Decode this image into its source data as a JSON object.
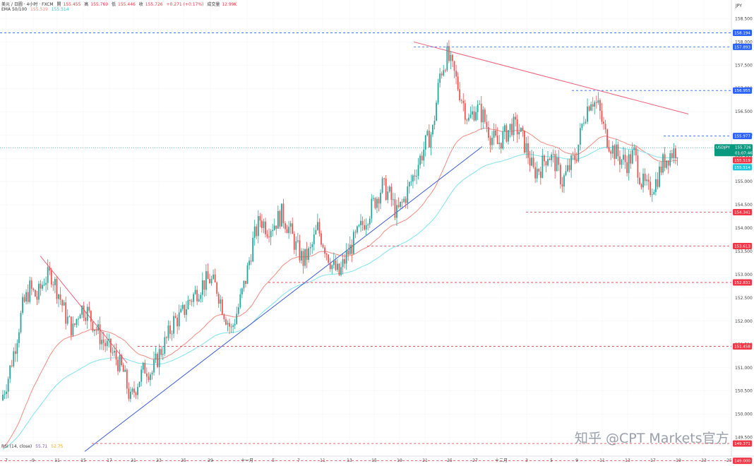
{
  "header": {
    "symbol_line": "美元 / 日圆 · 4小时 · FXCM",
    "open_label": "開",
    "open": "155.455",
    "high_label": "高",
    "high": "155.769",
    "low_label": "低",
    "low": "155.446",
    "close_label": "收",
    "close": "155.726",
    "change": "+0.271 (+0.17%)",
    "volume_label": "成交量",
    "volume": "12.99K",
    "ema_label": "EMA 50/100",
    "ema50": "155.519",
    "ema100": "155.514",
    "rsi_label": "RSI (14, close)",
    "rsi1": "55.71",
    "rsi2": "52.75"
  },
  "currency_label": "JPY",
  "watermark": "知乎 @CPT Markets官方",
  "colors": {
    "up": "#26a69a",
    "down": "#ef5350",
    "ema50": "#f28b82",
    "ema100": "#7fe3ee",
    "resistance": "#f0627a",
    "support_trend": "#3b5bdb",
    "blue_level": "#2962ff",
    "red_level": "#f23645",
    "price_tag": "#089981"
  },
  "chart_data": {
    "type": "candlestick",
    "title": "USDJPY 4H",
    "symbol": "USDJPY",
    "last_price": "155.726",
    "countdown": "01:07:46",
    "ema50_value": "155.519",
    "ema100_value": "155.514",
    "ylim": [
      149.1,
      158.9
    ],
    "y_ticks": [
      "158.500",
      "158.000",
      "157.500",
      "157.000",
      "156.500",
      "156.000",
      "155.500",
      "155.000",
      "154.500",
      "154.000",
      "153.500",
      "153.000",
      "152.500",
      "152.000",
      "151.500",
      "151.000",
      "150.500",
      "150.000",
      "149.500"
    ],
    "x_ticks": [
      "7",
      "9",
      "11",
      "15",
      "17",
      "21",
      "23",
      "25",
      "29",
      "十一月",
      "5",
      "7",
      "11",
      "13",
      "15",
      "19",
      "21",
      "25",
      "27",
      "十二月",
      "3",
      "5",
      "9",
      "11",
      "13",
      "17",
      "19",
      "23",
      "25"
    ],
    "levels_blue": [
      "158.194",
      "157.893",
      "156.955",
      "155.977"
    ],
    "levels_red": [
      "154.341",
      "153.613",
      "152.831",
      "151.458",
      "149.371",
      "149.000"
    ],
    "candle_anchors": [
      150.3,
      150.8,
      151.5,
      152.3,
      152.7,
      152.5,
      152.9,
      153.0,
      152.6,
      152.1,
      151.8,
      152.3,
      152.2,
      151.9,
      151.6,
      151.4,
      151.2,
      150.9,
      150.3,
      150.7,
      151.0,
      150.9,
      151.3,
      151.6,
      152.0,
      152.1,
      152.4,
      152.6,
      152.8,
      152.9,
      152.7,
      152.2,
      151.8,
      152.3,
      152.9,
      153.7,
      154.2,
      154.0,
      154.1,
      154.3,
      154.0,
      153.6,
      153.3,
      153.5,
      154.0,
      153.6,
      153.2,
      153.0,
      153.4,
      153.7,
      154.0,
      154.3,
      154.6,
      154.9,
      154.7,
      154.3,
      154.6,
      155.0,
      155.4,
      155.8,
      156.1,
      157.3,
      157.7,
      157.3,
      156.8,
      156.3,
      156.6,
      156.4,
      156.0,
      155.8,
      156.0,
      156.2,
      156.1,
      155.7,
      155.2,
      155.3,
      155.6,
      155.4,
      155.0,
      155.3,
      155.6,
      156.4,
      156.8,
      156.6,
      156.0,
      155.7,
      155.5,
      155.4,
      155.6,
      155.0,
      154.8,
      155.0,
      155.4,
      155.6,
      155.7
    ]
  }
}
